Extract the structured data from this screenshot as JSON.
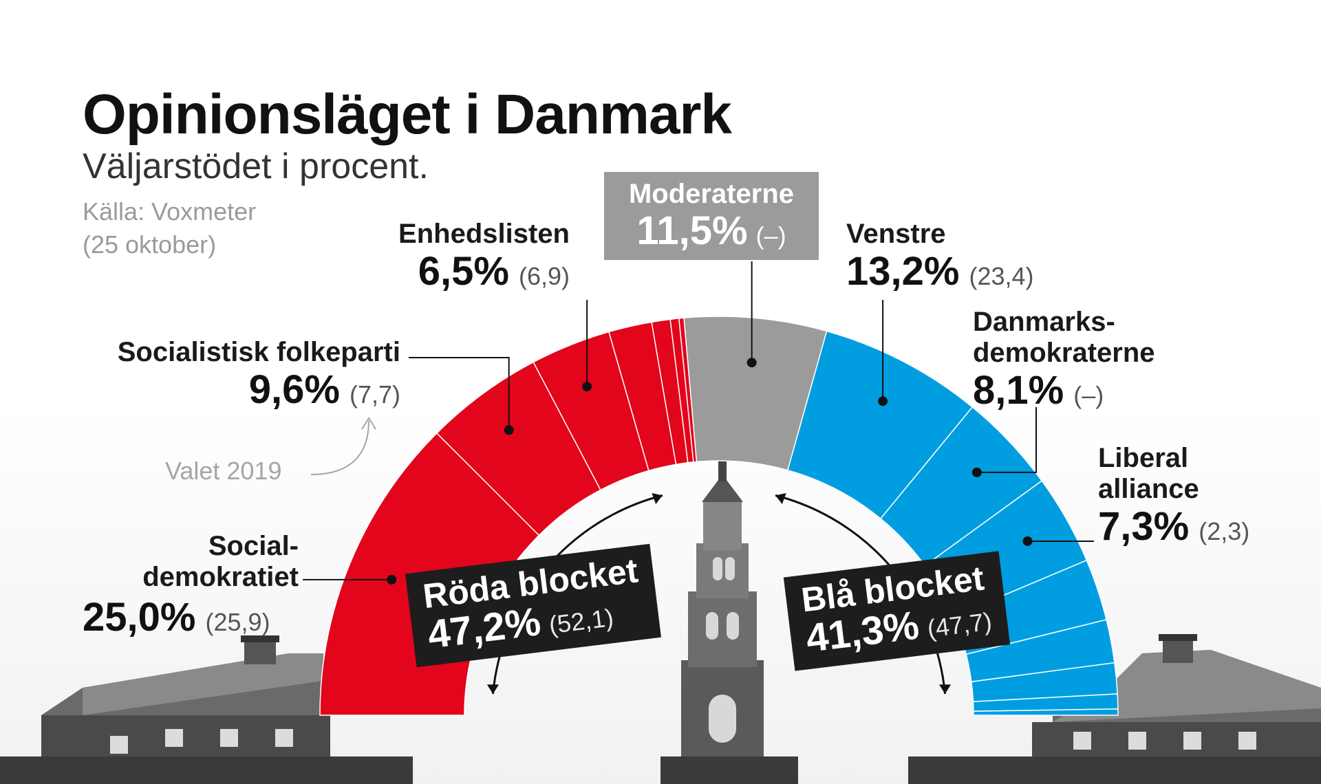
{
  "title": "Opinionsläget i Danmark",
  "subtitle": "Väljarstödet i procent.",
  "source_line1": "Källa: Voxmeter",
  "source_line2": "(25 oktober)",
  "valet_label": "Valet 2019",
  "colors": {
    "red_bloc": "#e3051b",
    "blue_bloc": "#009ee0",
    "moderaterne": "#9b9b9b",
    "bloc_box": "#1d1d1d"
  },
  "parties": {
    "socialdemokratiet": {
      "name_line1": "Social-",
      "name_line2": "demokratiet",
      "value": "25,0%",
      "prev": "(25,9)"
    },
    "sf": {
      "name": "Socialistisk folkeparti",
      "value": "9,6%",
      "prev": "(7,7)"
    },
    "enhedslisten": {
      "name": "Enhedslisten",
      "value": "6,5%",
      "prev": "(6,9)"
    },
    "moderaterne": {
      "name": "Moderaterne",
      "value": "11,5%",
      "prev": "(–)"
    },
    "venstre": {
      "name": "Venstre",
      "value": "13,2%",
      "prev": "(23,4)"
    },
    "danmarksdemokraterne": {
      "name_line1": "Danmarks-",
      "name_line2": "demokraterne",
      "value": "8,1%",
      "prev": "(–)"
    },
    "liberal_alliance": {
      "name_line1": "Liberal",
      "name_line2": "alliance",
      "value": "7,3%",
      "prev": "(2,3)"
    }
  },
  "blocs": {
    "red": {
      "name": "Röda blocket",
      "value": "47,2%",
      "prev": "(52,1)"
    },
    "blue": {
      "name": "Blå blocket",
      "value": "41,3%",
      "prev": "(47,7)"
    }
  },
  "chart_data": {
    "type": "pie",
    "variant": "half-donut parliament",
    "title": "Opinionsläget i Danmark",
    "subtitle": "Väljarstödet i procent.",
    "segments": [
      {
        "name": "Socialdemokratiet",
        "value": 25.0,
        "previous": 25.9,
        "bloc": "red",
        "labeled": true
      },
      {
        "name": "Socialistisk folkeparti",
        "value": 9.6,
        "previous": 7.7,
        "bloc": "red",
        "labeled": true
      },
      {
        "name": "Enhedslisten",
        "value": 6.5,
        "previous": 6.9,
        "bloc": "red",
        "labeled": true
      },
      {
        "name": "",
        "value": 3.5,
        "bloc": "red",
        "labeled": false
      },
      {
        "name": "",
        "value": 1.5,
        "bloc": "red",
        "labeled": false
      },
      {
        "name": "",
        "value": 0.7,
        "bloc": "red",
        "labeled": false
      },
      {
        "name": "",
        "value": 0.4,
        "bloc": "red",
        "labeled": false
      },
      {
        "name": "Moderaterne",
        "value": 11.5,
        "previous": null,
        "bloc": "none",
        "labeled": true
      },
      {
        "name": "Venstre",
        "value": 13.2,
        "previous": 23.4,
        "bloc": "blue",
        "labeled": true
      },
      {
        "name": "Danmarksdemokraterne",
        "value": 8.1,
        "previous": null,
        "bloc": "blue",
        "labeled": true
      },
      {
        "name": "Liberal alliance",
        "value": 7.3,
        "previous": 2.3,
        "bloc": "blue",
        "labeled": true
      },
      {
        "name": "",
        "value": 5.0,
        "bloc": "blue",
        "labeled": false
      },
      {
        "name": "",
        "value": 3.5,
        "bloc": "blue",
        "labeled": false
      },
      {
        "name": "",
        "value": 2.5,
        "bloc": "blue",
        "labeled": false
      },
      {
        "name": "",
        "value": 1.2,
        "bloc": "blue",
        "labeled": false
      },
      {
        "name": "",
        "value": 0.5,
        "bloc": "blue",
        "labeled": false
      }
    ],
    "blocs": [
      {
        "name": "Röda blocket",
        "value": 47.2,
        "previous": 52.1
      },
      {
        "name": "Blå blocket",
        "value": 41.3,
        "previous": 47.7
      }
    ]
  }
}
